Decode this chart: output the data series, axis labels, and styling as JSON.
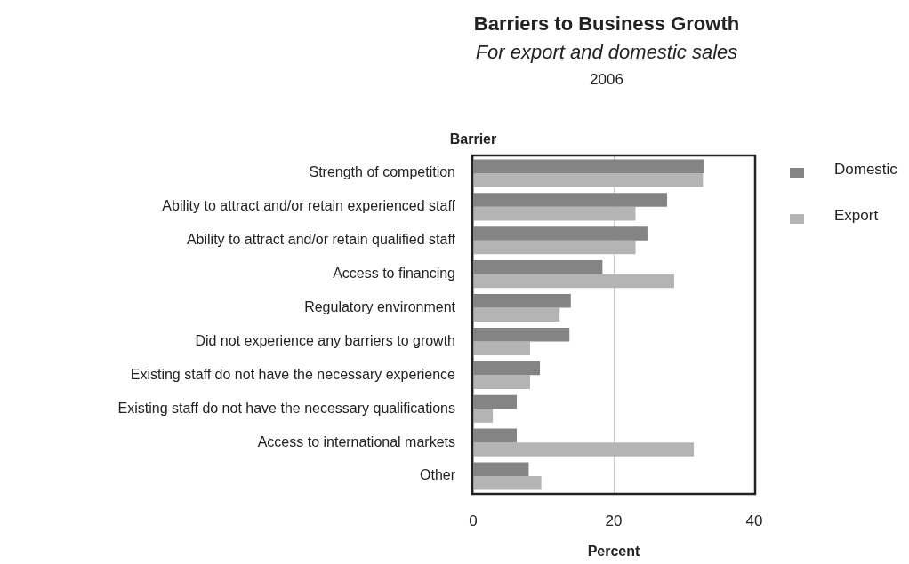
{
  "chart_data": {
    "type": "bar",
    "orientation": "horizontal",
    "title": "Barriers to Business Growth",
    "subtitle": "For export and domestic sales",
    "annotations": [
      "2006"
    ],
    "xlabel": "Percent",
    "ylabel": "Barrier",
    "categories": [
      "Strength of competition",
      "Ability to attract and/or retain experienced staff",
      "Ability to attract and/or retain qualified staff",
      "Access to financing",
      "Regulatory environment",
      "Did not experience any barriers to growth",
      "Existing staff do not have the necessary experience",
      "Existing staff do not have the necessary qualifications",
      "Access to international markets",
      "Other"
    ],
    "series": [
      {
        "name": "Domestic",
        "color": "#848484",
        "values": [
          32.9,
          27.6,
          24.8,
          18.4,
          13.9,
          13.7,
          9.5,
          6.2,
          6.2,
          7.9
        ]
      },
      {
        "name": "Export",
        "color": "#b4b4b4",
        "values": [
          32.7,
          23.1,
          23.1,
          28.6,
          12.3,
          8.1,
          8.1,
          2.8,
          31.4,
          9.7
        ]
      }
    ],
    "xlim": [
      0,
      40
    ],
    "xticks": [
      0,
      20,
      40
    ],
    "grid": "x",
    "legend": "right"
  }
}
